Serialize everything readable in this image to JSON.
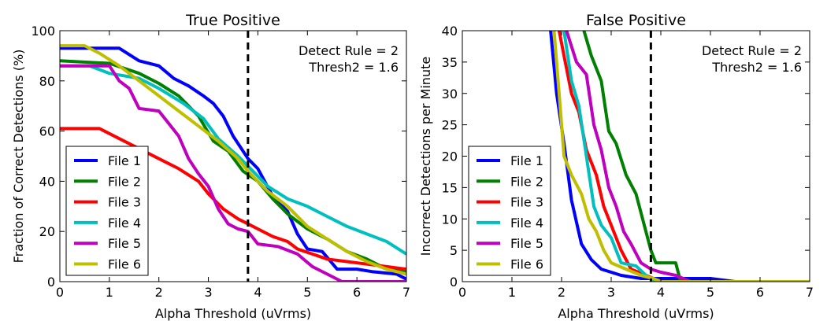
{
  "chart_data": [
    {
      "type": "line",
      "title": "True Positive",
      "xlabel": "Alpha Threshold (uVrms)",
      "ylabel": "Fraction of Correct Detections (%)",
      "xlim": [
        0,
        7
      ],
      "ylim": [
        0,
        100
      ],
      "xticks": [
        "0",
        "1",
        "2",
        "3",
        "4",
        "5",
        "6",
        "7"
      ],
      "yticks": [
        "0",
        "20",
        "40",
        "60",
        "80",
        "100"
      ],
      "annotation": [
        "Detect Rule = 2",
        "Thresh2 = 1.6"
      ],
      "vline": 3.8,
      "legend_position": "lower-left",
      "series": [
        {
          "name": "File 1",
          "color": "#0000ff",
          "points": [
            [
              0,
              93
            ],
            [
              1.2,
              93
            ],
            [
              1.6,
              88
            ],
            [
              2.0,
              86
            ],
            [
              2.3,
              81
            ],
            [
              2.6,
              78
            ],
            [
              2.9,
              74
            ],
            [
              3.1,
              71
            ],
            [
              3.3,
              66
            ],
            [
              3.5,
              58
            ],
            [
              3.8,
              49
            ],
            [
              4.0,
              45
            ],
            [
              4.3,
              34
            ],
            [
              4.6,
              28
            ],
            [
              4.8,
              19
            ],
            [
              5.0,
              13
            ],
            [
              5.3,
              12
            ],
            [
              5.6,
              5
            ],
            [
              6.0,
              5
            ],
            [
              6.3,
              4
            ],
            [
              6.8,
              3
            ],
            [
              7.0,
              1
            ]
          ]
        },
        {
          "name": "File 2",
          "color": "#008000",
          "points": [
            [
              0,
              88
            ],
            [
              1.0,
              87
            ],
            [
              1.6,
              83
            ],
            [
              2.0,
              79
            ],
            [
              2.4,
              74
            ],
            [
              2.8,
              66
            ],
            [
              3.1,
              56
            ],
            [
              3.4,
              52
            ],
            [
              3.7,
              44
            ],
            [
              4.0,
              40
            ],
            [
              4.3,
              33
            ],
            [
              4.6,
              27
            ],
            [
              5.0,
              21
            ],
            [
              5.4,
              17
            ],
            [
              5.8,
              12
            ],
            [
              6.2,
              9
            ],
            [
              6.6,
              5
            ],
            [
              7.0,
              4
            ]
          ]
        },
        {
          "name": "File 3",
          "color": "#ff0000",
          "points": [
            [
              0,
              61
            ],
            [
              0.8,
              61
            ],
            [
              1.2,
              57
            ],
            [
              1.6,
              53
            ],
            [
              2.0,
              49
            ],
            [
              2.4,
              45
            ],
            [
              2.8,
              40
            ],
            [
              3.0,
              35
            ],
            [
              3.3,
              29
            ],
            [
              3.6,
              25
            ],
            [
              3.8,
              23
            ],
            [
              4.0,
              21
            ],
            [
              4.3,
              18
            ],
            [
              4.6,
              16
            ],
            [
              4.8,
              13
            ],
            [
              5.1,
              11
            ],
            [
              5.4,
              9
            ],
            [
              5.8,
              8
            ],
            [
              6.2,
              7
            ],
            [
              6.6,
              6
            ],
            [
              7.0,
              5
            ]
          ]
        },
        {
          "name": "File 4",
          "color": "#00bfbf",
          "points": [
            [
              0,
              86
            ],
            [
              0.6,
              86
            ],
            [
              1.0,
              83
            ],
            [
              1.6,
              81
            ],
            [
              2.0,
              77
            ],
            [
              2.5,
              71
            ],
            [
              2.9,
              65
            ],
            [
              3.2,
              57
            ],
            [
              3.6,
              50
            ],
            [
              3.8,
              46
            ],
            [
              4.2,
              38
            ],
            [
              4.6,
              33
            ],
            [
              5.0,
              30
            ],
            [
              5.4,
              26
            ],
            [
              5.8,
              22
            ],
            [
              6.2,
              19
            ],
            [
              6.6,
              16
            ],
            [
              7.0,
              11
            ]
          ]
        },
        {
          "name": "File 5",
          "color": "#bf00bf",
          "points": [
            [
              0,
              86
            ],
            [
              1.0,
              86
            ],
            [
              1.2,
              80
            ],
            [
              1.4,
              77
            ],
            [
              1.6,
              69
            ],
            [
              2.0,
              68
            ],
            [
              2.2,
              63
            ],
            [
              2.4,
              58
            ],
            [
              2.6,
              49
            ],
            [
              2.8,
              43
            ],
            [
              3.0,
              38
            ],
            [
              3.2,
              29
            ],
            [
              3.4,
              23
            ],
            [
              3.6,
              21
            ],
            [
              3.8,
              20
            ],
            [
              4.0,
              15
            ],
            [
              4.4,
              14
            ],
            [
              4.8,
              11
            ],
            [
              5.1,
              6
            ],
            [
              5.4,
              3
            ],
            [
              5.7,
              0
            ],
            [
              7.0,
              0
            ]
          ]
        },
        {
          "name": "File 6",
          "color": "#bfbf00",
          "points": [
            [
              0,
              94
            ],
            [
              0.5,
              94
            ],
            [
              0.8,
              91
            ],
            [
              1.2,
              86
            ],
            [
              1.6,
              80
            ],
            [
              2.0,
              74
            ],
            [
              2.4,
              68
            ],
            [
              2.8,
              62
            ],
            [
              3.2,
              56
            ],
            [
              3.6,
              49
            ],
            [
              3.8,
              44
            ],
            [
              4.2,
              36
            ],
            [
              4.6,
              30
            ],
            [
              5.0,
              22
            ],
            [
              5.4,
              17
            ],
            [
              5.8,
              12
            ],
            [
              6.2,
              8
            ],
            [
              6.6,
              5
            ],
            [
              7.0,
              3
            ]
          ]
        }
      ]
    },
    {
      "type": "line",
      "title": "False Positive",
      "xlabel": "Alpha Threshold (uVrms)",
      "ylabel": "Incorrect Detections per Minute",
      "xlim": [
        0,
        7
      ],
      "ylim": [
        0,
        40
      ],
      "xticks": [
        "0",
        "1",
        "2",
        "3",
        "4",
        "5",
        "6",
        "7"
      ],
      "yticks": [
        "0",
        "5",
        "10",
        "15",
        "20",
        "25",
        "30",
        "35",
        "40"
      ],
      "annotation": [
        "Detect Rule = 2",
        "Thresh2 = 1.6"
      ],
      "vline": 3.8,
      "legend_position": "lower-left",
      "series": [
        {
          "name": "File 1",
          "color": "#0000ff",
          "points": [
            [
              1.78,
              40
            ],
            [
              1.9,
              30
            ],
            [
              2.05,
              22
            ],
            [
              2.2,
              13
            ],
            [
              2.4,
              6
            ],
            [
              2.6,
              3.5
            ],
            [
              2.8,
              2
            ],
            [
              3.0,
              1.5
            ],
            [
              3.2,
              1
            ],
            [
              3.6,
              0.5
            ],
            [
              4.0,
              0.5
            ],
            [
              5.0,
              0.5
            ],
            [
              5.5,
              0
            ],
            [
              7.0,
              0
            ]
          ]
        },
        {
          "name": "File 2",
          "color": "#008000",
          "points": [
            [
              2.45,
              40
            ],
            [
              2.6,
              36
            ],
            [
              2.8,
              32
            ],
            [
              2.95,
              24
            ],
            [
              3.1,
              22
            ],
            [
              3.3,
              17
            ],
            [
              3.5,
              14
            ],
            [
              3.7,
              8
            ],
            [
              3.8,
              5
            ],
            [
              3.9,
              3
            ],
            [
              4.3,
              3
            ],
            [
              4.4,
              0
            ],
            [
              7.0,
              0
            ]
          ]
        },
        {
          "name": "File 3",
          "color": "#ff0000",
          "points": [
            [
              1.95,
              40
            ],
            [
              2.05,
              36
            ],
            [
              2.2,
              30
            ],
            [
              2.35,
              27
            ],
            [
              2.5,
              21
            ],
            [
              2.6,
              19
            ],
            [
              2.7,
              17
            ],
            [
              2.85,
              12
            ],
            [
              3.0,
              9
            ],
            [
              3.2,
              5
            ],
            [
              3.4,
              2
            ],
            [
              3.7,
              1
            ],
            [
              4.0,
              0
            ],
            [
              7.0,
              0
            ]
          ]
        },
        {
          "name": "File 4",
          "color": "#00bfbf",
          "points": [
            [
              2.05,
              40
            ],
            [
              2.2,
              32
            ],
            [
              2.35,
              28
            ],
            [
              2.5,
              20
            ],
            [
              2.65,
              12
            ],
            [
              2.8,
              9
            ],
            [
              3.0,
              7
            ],
            [
              3.2,
              3
            ],
            [
              3.5,
              2.5
            ],
            [
              3.7,
              1
            ],
            [
              3.9,
              0
            ],
            [
              7.0,
              0
            ]
          ]
        },
        {
          "name": "File 5",
          "color": "#bf00bf",
          "points": [
            [
              2.1,
              40
            ],
            [
              2.3,
              35
            ],
            [
              2.5,
              33
            ],
            [
              2.65,
              25
            ],
            [
              2.8,
              21
            ],
            [
              2.95,
              15
            ],
            [
              3.1,
              12
            ],
            [
              3.25,
              8
            ],
            [
              3.4,
              6
            ],
            [
              3.6,
              3
            ],
            [
              3.8,
              2
            ],
            [
              4.0,
              1.5
            ],
            [
              4.3,
              1
            ],
            [
              4.6,
              0
            ],
            [
              7.0,
              0
            ]
          ]
        },
        {
          "name": "File 6",
          "color": "#bfbf00",
          "points": [
            [
              1.85,
              40
            ],
            [
              1.95,
              30
            ],
            [
              2.05,
              20
            ],
            [
              2.2,
              17
            ],
            [
              2.4,
              14
            ],
            [
              2.55,
              10
            ],
            [
              2.7,
              8
            ],
            [
              2.85,
              5
            ],
            [
              3.0,
              3
            ],
            [
              3.3,
              2
            ],
            [
              3.6,
              1
            ],
            [
              3.85,
              0.5
            ],
            [
              4.0,
              0
            ],
            [
              7.0,
              0
            ]
          ]
        }
      ]
    }
  ]
}
